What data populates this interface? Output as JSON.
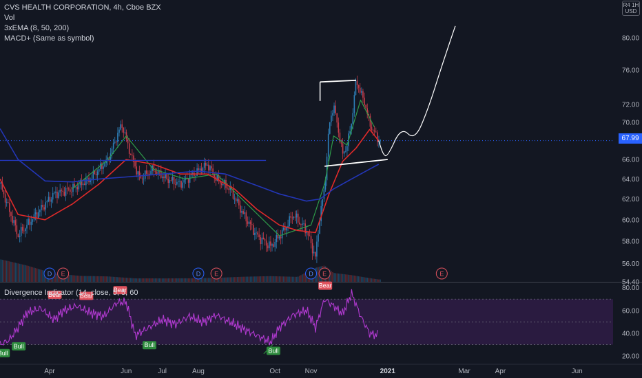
{
  "header": {
    "title": "CVS HEALTH CORPORATION, 4h, Cboe BZX",
    "indicators": [
      "Vol",
      "3xEMA (8, 50, 200)",
      "MACD+ (Same as symbol)"
    ],
    "currency": "USD",
    "currency_top": "R4 1H"
  },
  "colors": {
    "background": "#131722",
    "up_candle": "#2d7fb8",
    "down_candle": "#c53d4a",
    "ema_fast": "#2e9d4a",
    "ema_mid": "#e02a2a",
    "ema_slow": "#2336b8",
    "rsi_line": "#b23ad1",
    "rsi_band": "#2a1b40",
    "bull": "#2e8b3e",
    "bear": "#e0525e",
    "last_price_bg": "#2962ff"
  },
  "chart_data": {
    "type": "line",
    "title": "CVS HEALTH CORPORATION, 4h, Cboe BZX",
    "price_axis": {
      "ticks": [
        54.4,
        56.0,
        58.0,
        60.0,
        62.0,
        64.0,
        66.0,
        68.0,
        70.0,
        72.0,
        76.0,
        80.0
      ],
      "tick_labels": [
        "54.40",
        "56.00",
        "58.00",
        "60.00",
        "62.00",
        "64.00",
        "66.00",
        "68.00",
        "70.00",
        "72.00",
        "76.00",
        "80.00"
      ],
      "scale": "log"
    },
    "last_price": "67.99",
    "time_axis": {
      "labels": [
        "Apr",
        "Jun",
        "Jul",
        "Aug",
        "Oct",
        "Nov",
        "2021",
        "Mar",
        "Apr",
        "Jun"
      ],
      "values": [
        2020.25,
        2020.42,
        2020.5,
        2020.58,
        2020.75,
        2020.83,
        2021.0,
        2021.17,
        2021.25,
        2021.42
      ]
    },
    "price_keypoints": {
      "x": [
        2020.14,
        2020.18,
        2020.22,
        2020.26,
        2020.3,
        2020.34,
        2020.38,
        2020.41,
        2020.43,
        2020.45,
        2020.48,
        2020.51,
        2020.54,
        2020.57,
        2020.6,
        2020.62,
        2020.65,
        2020.68,
        2020.71,
        2020.74,
        2020.77,
        2020.79,
        2020.82,
        2020.84,
        2020.85,
        2020.86,
        2020.87,
        2020.88,
        2020.9,
        2020.91,
        2020.92,
        2020.93,
        2020.95,
        2020.96,
        2020.98
      ],
      "y": [
        63.5,
        58.5,
        60.5,
        62.5,
        63.0,
        64.0,
        66.0,
        69.8,
        66.5,
        64.0,
        65.0,
        64.0,
        63.5,
        64.5,
        65.5,
        64.0,
        63.0,
        60.5,
        58.5,
        57.5,
        59.0,
        60.5,
        59.0,
        56.5,
        60.5,
        63.0,
        69.5,
        72.0,
        66.5,
        67.5,
        70.0,
        74.8,
        72.0,
        69.8,
        68.0
      ]
    },
    "series": [
      {
        "name": "EMA 8",
        "x": [
          2020.3,
          2020.38,
          2020.42,
          2020.48,
          2020.55,
          2020.62,
          2020.7,
          2020.76,
          2020.83,
          2020.86,
          2020.88,
          2020.91,
          2020.94,
          2020.97
        ],
        "y": [
          63.0,
          66.0,
          68.5,
          65.0,
          64.0,
          64.5,
          61.0,
          58.5,
          59.5,
          63.5,
          68.5,
          67.5,
          72.5,
          69.5
        ]
      },
      {
        "name": "EMA 50",
        "x": [
          2020.14,
          2020.18,
          2020.24,
          2020.3,
          2020.36,
          2020.42,
          2020.48,
          2020.54,
          2020.6,
          2020.66,
          2020.71,
          2020.76,
          2020.8,
          2020.84,
          2020.87,
          2020.9,
          2020.93,
          2020.96,
          2020.98
        ],
        "y": [
          64.0,
          60.5,
          60.0,
          61.5,
          63.5,
          66.0,
          65.5,
          64.5,
          64.5,
          63.0,
          61.0,
          59.5,
          59.0,
          58.8,
          62.5,
          65.8,
          67.2,
          69.2,
          68.0
        ]
      },
      {
        "name": "EMA 200",
        "x": [
          2020.14,
          2020.18,
          2020.24,
          2020.3,
          2020.36,
          2020.42,
          2020.5,
          2020.58,
          2020.64,
          2020.7,
          2020.76,
          2020.82,
          2020.85,
          2020.88,
          2020.92,
          2020.96,
          2020.98
        ],
        "y": [
          69.3,
          66.0,
          63.8,
          63.7,
          64.0,
          64.2,
          64.5,
          64.8,
          64.5,
          63.5,
          62.5,
          61.8,
          62.0,
          63.0,
          64.0,
          65.0,
          65.5
        ]
      }
    ],
    "annotations": {
      "horizontal_line": {
        "x": [
          2020.14,
          2020.73
        ],
        "y": 65.9
      },
      "pattern_top": {
        "x": [
          2020.85,
          2020.93
        ],
        "y": [
          74.6,
          74.8
        ]
      },
      "pattern_bottom": {
        "x": [
          2020.86,
          2021.0
        ],
        "y": [
          65.3,
          66.0
        ]
      },
      "projection": {
        "x": [
          2020.98,
          2020.99,
          2021.0,
          2021.03,
          2021.06,
          2021.09,
          2021.12,
          2021.15
        ],
        "y": [
          68.0,
          66.5,
          66.3,
          69.5,
          68.0,
          71.5,
          76.5,
          81.5
        ]
      },
      "earnings_markers": [
        {
          "label": "D",
          "x": 2020.25,
          "kind": "dividend"
        },
        {
          "label": "E",
          "x": 2020.28,
          "kind": "earnings"
        },
        {
          "label": "D",
          "x": 2020.58,
          "kind": "dividend"
        },
        {
          "label": "E",
          "x": 2020.62,
          "kind": "earnings"
        },
        {
          "label": "D",
          "x": 2020.83,
          "kind": "dividend"
        },
        {
          "label": "E",
          "x": 2020.86,
          "kind": "earnings"
        },
        {
          "label": "E",
          "x": 2021.12,
          "kind": "earnings"
        }
      ]
    },
    "volume": {
      "x": [
        2020.14,
        2020.2,
        2020.26,
        2020.32,
        2020.38,
        2020.44,
        2020.5,
        2020.56,
        2020.62,
        2020.68,
        2020.74,
        2020.8,
        2020.84,
        2020.86,
        2020.88,
        2020.92,
        2020.96,
        2020.98
      ],
      "values": [
        60,
        45,
        25,
        20,
        22,
        18,
        14,
        12,
        12,
        14,
        15,
        13,
        38,
        45,
        25,
        20,
        12,
        8
      ]
    },
    "rsi": {
      "name": "Divergence Indicator (14, close, 5, 5, 60",
      "ticks": [
        20.0,
        40.0,
        60.0,
        80.0
      ],
      "tick_labels": [
        "20.00",
        "40.00",
        "60.00",
        "80.00"
      ],
      "band": [
        30,
        70
      ],
      "x": [
        2020.14,
        2020.16,
        2020.18,
        2020.2,
        2020.23,
        2020.26,
        2020.28,
        2020.31,
        2020.34,
        2020.37,
        2020.4,
        2020.42,
        2020.44,
        2020.47,
        2020.5,
        2020.53,
        2020.56,
        2020.59,
        2020.62,
        2020.65,
        2020.68,
        2020.71,
        2020.74,
        2020.76,
        2020.79,
        2020.82,
        2020.84,
        2020.86,
        2020.88,
        2020.9,
        2020.92,
        2020.94,
        2020.96,
        2020.98
      ],
      "y": [
        30,
        34,
        45,
        58,
        62,
        52,
        60,
        64,
        58,
        55,
        67,
        67,
        38,
        45,
        52,
        48,
        55,
        50,
        56,
        50,
        44,
        38,
        32,
        45,
        56,
        60,
        45,
        70,
        64,
        57,
        75,
        55,
        40,
        38
      ],
      "labels": [
        {
          "text": "Bull",
          "x": 2020.145,
          "y": 28
        },
        {
          "text": "Bull",
          "x": 2020.18,
          "y": 34
        },
        {
          "text": "Bear",
          "x": 2020.26,
          "y": 69
        },
        {
          "text": "Bear",
          "x": 2020.33,
          "y": 68
        },
        {
          "text": "Bear",
          "x": 2020.405,
          "y": 73
        },
        {
          "text": "Bull",
          "x": 2020.47,
          "y": 35
        },
        {
          "text": "Bull",
          "x": 2020.745,
          "y": 30
        },
        {
          "text": "Bear",
          "x": 2020.86,
          "y": 77
        }
      ]
    }
  }
}
